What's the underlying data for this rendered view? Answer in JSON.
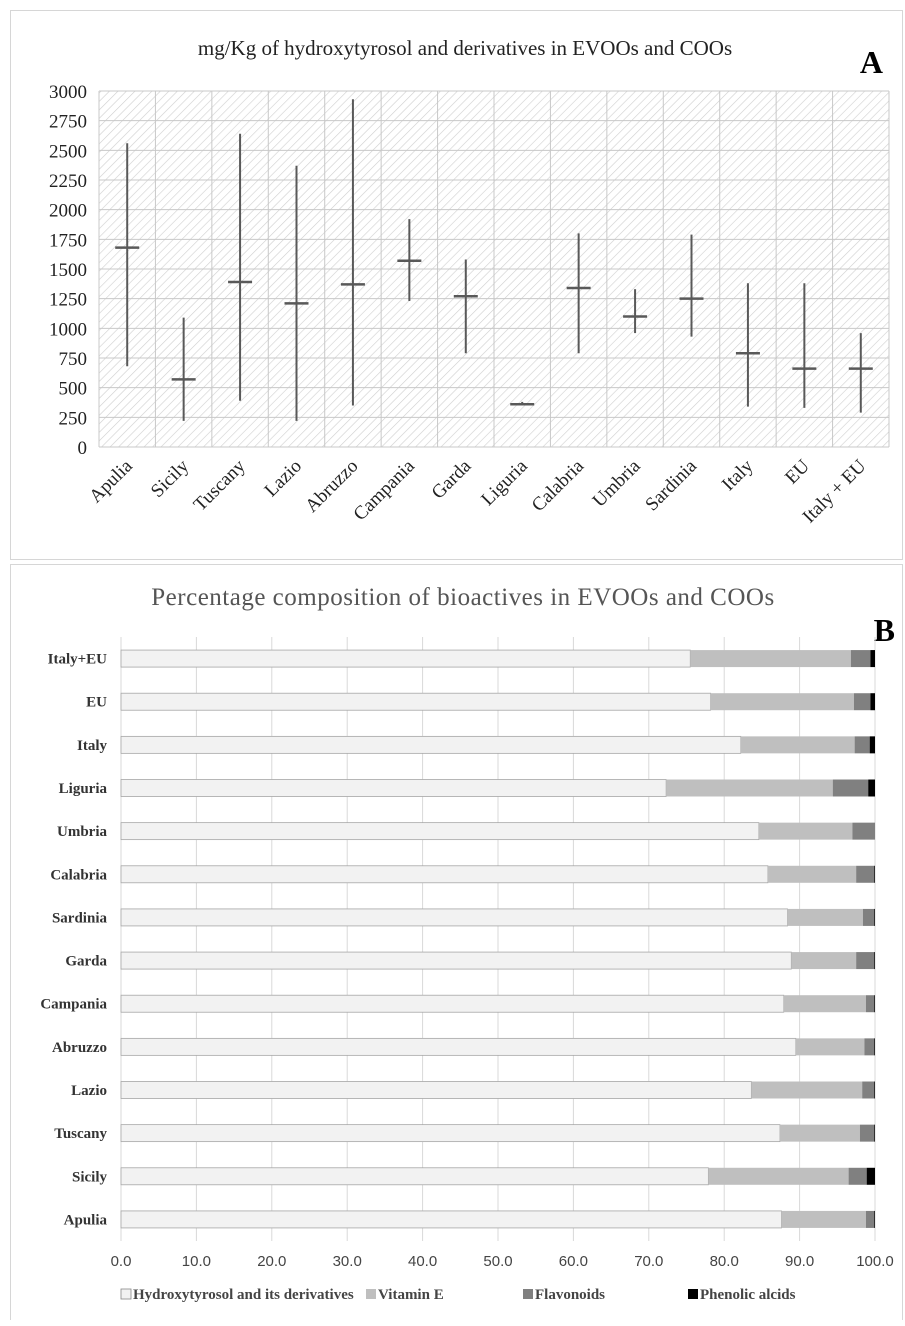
{
  "chart_data": [
    {
      "panel": "A",
      "type": "range",
      "title": "mg/Kg of hydroxytyrosol and derivatives in EVOOs and COOs",
      "ylim": [
        0,
        3000
      ],
      "yticks": [
        0,
        250,
        500,
        750,
        1000,
        1250,
        1500,
        1750,
        2000,
        2250,
        2500,
        2750,
        3000
      ],
      "grid": true,
      "categories": [
        "Apulia",
        "Sicily",
        "Tuscany",
        "Lazio",
        "Abruzzo",
        "Campania",
        "Garda",
        "Liguria",
        "Calabria",
        "Umbria",
        "Sardinia",
        "Italy",
        "EU",
        "Italy + EU"
      ],
      "series": [
        {
          "name": "max",
          "values": [
            2560,
            1090,
            2640,
            2370,
            2930,
            1920,
            1580,
            380,
            1800,
            1330,
            1790,
            1380,
            1380,
            960
          ]
        },
        {
          "name": "min",
          "values": [
            680,
            220,
            390,
            220,
            350,
            1230,
            790,
            350,
            790,
            960,
            930,
            340,
            330,
            290
          ]
        },
        {
          "name": "mean",
          "values": [
            1680,
            570,
            1390,
            1210,
            1370,
            1570,
            1270,
            360,
            1340,
            1100,
            1250,
            790,
            660,
            660
          ]
        }
      ]
    },
    {
      "panel": "B",
      "type": "bar",
      "orientation": "horizontal",
      "stacked": true,
      "title": "Percentage composition of bioactives in EVOOs and COOs",
      "xlim": [
        0,
        100
      ],
      "xticks": [
        "0.0",
        "10.0",
        "20.0",
        "30.0",
        "40.0",
        "50.0",
        "60.0",
        "70.0",
        "80.0",
        "90.0",
        "100.0"
      ],
      "grid": true,
      "legend_position": "bottom",
      "categories": [
        "Italy+EU",
        "EU",
        "Italy",
        "Liguria",
        "Umbria",
        "Calabria",
        "Sardinia",
        "Garda",
        "Campania",
        "Abruzzo",
        "Lazio",
        "Tuscany",
        "Sicily",
        "Apulia"
      ],
      "series": [
        {
          "name": "Hydroxytyrosol and its derivatives",
          "color": "#f2f2f2",
          "values": [
            75.5,
            78.2,
            82.2,
            72.3,
            84.6,
            85.8,
            88.4,
            88.9,
            87.9,
            89.5,
            83.6,
            87.4,
            77.9,
            87.6
          ]
        },
        {
          "name": "Vitamin E",
          "color": "#bfbfbf",
          "values": [
            21.3,
            19.0,
            15.1,
            22.1,
            12.4,
            11.7,
            10.0,
            8.6,
            10.9,
            9.1,
            14.7,
            10.6,
            18.6,
            11.2
          ]
        },
        {
          "name": "Flavonoids",
          "color": "#808080",
          "values": [
            2.6,
            2.2,
            2.0,
            4.7,
            3.0,
            2.4,
            1.5,
            2.4,
            1.1,
            1.3,
            1.6,
            1.9,
            2.4,
            1.1
          ]
        },
        {
          "name": "Phenolic alcids",
          "color": "#000000",
          "values": [
            0.6,
            0.6,
            0.7,
            0.9,
            0.0,
            0.1,
            0.1,
            0.1,
            0.1,
            0.1,
            0.1,
            0.1,
            1.1,
            0.1
          ]
        }
      ]
    }
  ]
}
